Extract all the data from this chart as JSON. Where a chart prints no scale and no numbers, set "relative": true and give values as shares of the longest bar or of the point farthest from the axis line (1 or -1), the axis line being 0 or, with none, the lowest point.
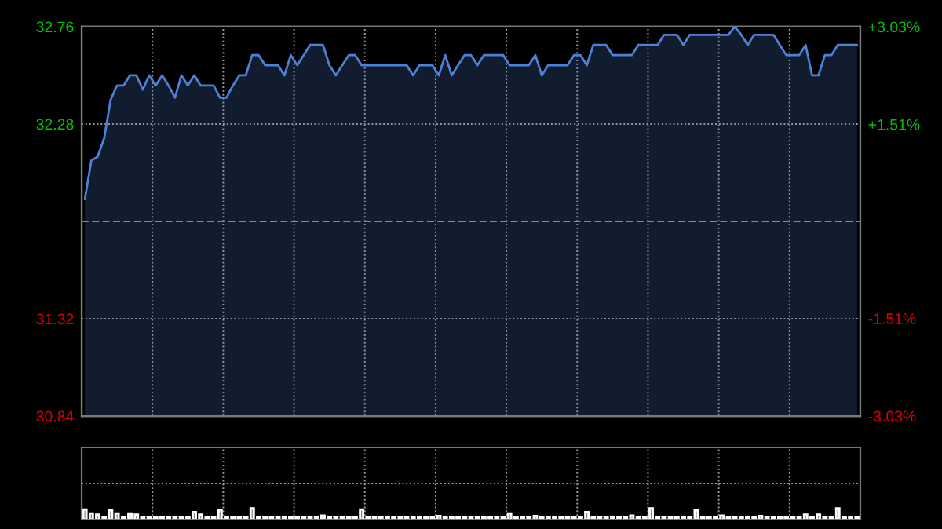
{
  "chart_data": [
    {
      "type": "area",
      "categories": [
        null,
        null,
        null,
        null,
        null,
        null,
        null,
        null,
        null,
        null,
        null,
        null,
        null,
        null,
        null,
        null,
        null,
        null,
        null,
        null,
        null,
        null,
        null,
        null,
        null,
        null,
        null,
        null,
        null,
        null,
        null,
        null,
        null,
        null,
        null,
        null,
        null,
        null,
        null,
        null,
        null,
        null,
        null,
        null,
        null,
        null,
        null,
        null,
        null,
        null,
        null,
        null,
        null,
        null,
        null,
        null,
        null,
        null,
        null,
        null,
        null,
        null,
        null,
        null,
        null,
        null,
        null,
        null,
        null,
        null,
        null,
        null,
        null,
        null,
        null,
        null,
        null,
        null,
        null,
        null,
        null,
        null,
        null,
        null,
        null,
        null,
        null,
        null,
        null,
        null,
        null,
        null,
        null,
        null,
        null,
        null,
        null,
        null,
        null,
        null,
        null,
        null,
        null,
        null,
        null,
        null,
        null,
        null,
        null,
        null,
        null,
        null,
        null,
        null,
        null,
        null,
        null,
        null,
        null,
        null,
        null
      ],
      "series": [
        {
          "color": "#4f80d8",
          "values": [
            31.91,
            32.1,
            32.12,
            32.21,
            32.4,
            32.47,
            32.47,
            32.52,
            32.52,
            32.45,
            32.52,
            32.47,
            32.52,
            32.47,
            32.41,
            32.52,
            32.47,
            32.52,
            32.47,
            32.47,
            32.47,
            32.41,
            32.41,
            32.47,
            32.52,
            32.52,
            32.62,
            32.62,
            32.57,
            32.57,
            32.57,
            32.52,
            32.62,
            32.57,
            32.62,
            32.67,
            32.67,
            32.67,
            32.57,
            32.52,
            32.57,
            32.62,
            32.62,
            32.57,
            32.57,
            32.57,
            32.57,
            32.57,
            32.57,
            32.57,
            32.57,
            32.52,
            32.57,
            32.57,
            32.57,
            32.52,
            32.62,
            32.52,
            32.57,
            32.62,
            32.62,
            32.57,
            32.62,
            32.62,
            32.62,
            32.62,
            32.57,
            32.57,
            32.57,
            32.57,
            32.62,
            32.52,
            32.57,
            32.57,
            32.57,
            32.57,
            32.62,
            32.62,
            32.57,
            32.67,
            32.67,
            32.67,
            32.62,
            32.62,
            32.62,
            32.62,
            32.67,
            32.67,
            32.67,
            32.67,
            32.72,
            32.72,
            32.72,
            32.67,
            32.72,
            32.72,
            32.72,
            32.72,
            32.72,
            32.72,
            32.72,
            32.76,
            32.72,
            32.67,
            32.72,
            32.72,
            32.72,
            32.72,
            32.67,
            32.62,
            32.62,
            32.62,
            32.67,
            32.52,
            32.52,
            32.62,
            32.62,
            32.67,
            32.67,
            32.67,
            32.67
          ]
        }
      ],
      "ylim": [
        30.84,
        32.76
      ],
      "yticks": [
        30.84,
        31.32,
        32.28,
        32.76
      ],
      "y2lim": [
        -3.03,
        3.03
      ],
      "y2ticks": [
        {
          "value": -3.03,
          "label": "-3.03%"
        },
        {
          "value": -1.51,
          "label": "-1.51%"
        },
        {
          "value": 1.51,
          "label": "+1.51%"
        },
        {
          "value": 3.03,
          "label": "+3.03%"
        }
      ],
      "ref_lines": [
        {
          "axis": "y",
          "value": 31.8,
          "line_style": "dashed",
          "color": "#8a8a8a"
        }
      ],
      "grid": true
    },
    {
      "type": "bar",
      "relative": true,
      "categories": [
        null,
        null,
        null,
        null,
        null,
        null,
        null,
        null,
        null,
        null,
        null,
        null,
        null,
        null,
        null,
        null,
        null,
        null,
        null,
        null,
        null,
        null,
        null,
        null,
        null,
        null,
        null,
        null,
        null,
        null,
        null,
        null,
        null,
        null,
        null,
        null,
        null,
        null,
        null,
        null,
        null,
        null,
        null,
        null,
        null,
        null,
        null,
        null,
        null,
        null,
        null,
        null,
        null,
        null,
        null,
        null,
        null,
        null,
        null,
        null,
        null,
        null,
        null,
        null,
        null,
        null,
        null,
        null,
        null,
        null,
        null,
        null,
        null,
        null,
        null,
        null,
        null,
        null,
        null,
        null,
        null,
        null,
        null,
        null,
        null,
        null,
        null,
        null,
        null,
        null,
        null,
        null,
        null,
        null,
        null,
        null,
        null,
        null,
        null,
        null,
        null,
        null,
        null,
        null,
        null,
        null,
        null,
        null,
        null,
        null,
        null,
        null,
        null,
        null,
        null,
        null,
        null,
        null,
        null,
        null,
        null
      ],
      "series": [
        {
          "color": "#8c8c8c",
          "values": [
            0.91,
            0.55,
            0.45,
            0.2,
            0.86,
            0.55,
            0.2,
            0.55,
            0.45,
            0.2,
            0.2,
            0.2,
            0.2,
            0.2,
            0.2,
            0.2,
            0.2,
            0.68,
            0.45,
            0.2,
            0.2,
            0.86,
            0.2,
            0.2,
            0.2,
            0.2,
            1,
            0.2,
            0.2,
            0.2,
            0.2,
            0.2,
            0.2,
            0.2,
            0.2,
            0.2,
            0.2,
            0.36,
            0.2,
            0.2,
            0.2,
            0.2,
            0.2,
            0.91,
            0.2,
            0.2,
            0.2,
            0.2,
            0.2,
            0.2,
            0.2,
            0.2,
            0.2,
            0.2,
            0.2,
            0.32,
            0.2,
            0.2,
            0.2,
            0.2,
            0.2,
            0.2,
            0.2,
            0.2,
            0.2,
            0.2,
            0.55,
            0.2,
            0.2,
            0.2,
            0.32,
            0.2,
            0.2,
            0.2,
            0.2,
            0.2,
            0.2,
            0.2,
            0.68,
            0.2,
            0.2,
            0.2,
            0.2,
            0.2,
            0.2,
            0.36,
            0.2,
            0.2,
            1,
            0.2,
            0.2,
            0.2,
            0.2,
            0.2,
            0.2,
            0.86,
            0.2,
            0.2,
            0.2,
            0.36,
            0.2,
            0.2,
            0.2,
            0.2,
            0.2,
            0.32,
            0.2,
            0.2,
            0.2,
            0.2,
            0.2,
            0.2,
            0.45,
            0.2,
            0.45,
            0.2,
            0.2,
            1,
            0.2,
            0.2,
            0.2
          ]
        }
      ],
      "grid": true,
      "tick_labels": false
    }
  ]
}
